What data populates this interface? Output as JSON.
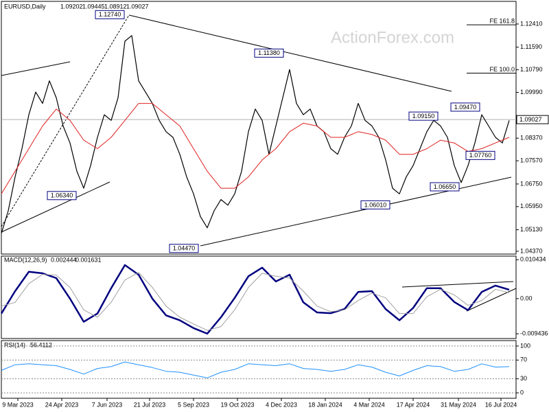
{
  "chart_data": [
    {
      "type": "line",
      "title": "EURUSD,Daily",
      "ohlc": [
        1.09202,
        1.09445,
        1.08912,
        1.09027
      ],
      "watermark": "ActionForex.com",
      "xlim": [
        0,
        375
      ],
      "ylim": [
        1.0427,
        1.1321
      ],
      "xticks": [
        {
          "value": 12,
          "label": "9 Mar 2023"
        },
        {
          "value": 44,
          "label": "24 Apr 2023"
        },
        {
          "value": 77,
          "label": "7 Jun 2023"
        },
        {
          "value": 108,
          "label": "21 Jul 2023"
        },
        {
          "value": 140,
          "label": "5 Sep 2023"
        },
        {
          "value": 172,
          "label": "19 Oct 2023"
        },
        {
          "value": 204,
          "label": "4 Dec 2023"
        },
        {
          "value": 236,
          "label": "18 Jan 2024"
        },
        {
          "value": 268,
          "label": "4 Mar 2024"
        },
        {
          "value": 300,
          "label": "17 Apr 2024"
        },
        {
          "value": 333,
          "label": "31 May 2024"
        },
        {
          "value": 364,
          "label": "16 Jul 2024"
        }
      ],
      "yticks": [
        {
          "value": 1.1241,
          "label": "1.12410"
        },
        {
          "value": 1.1159,
          "label": "1.11590"
        },
        {
          "value": 1.1079,
          "label": "1.10790"
        },
        {
          "value": 1.0999,
          "label": "1.09990"
        },
        {
          "value": 1.0837,
          "label": "1.08370"
        },
        {
          "value": 1.0757,
          "label": "1.07570"
        },
        {
          "value": 1.0675,
          "label": "1.06750"
        },
        {
          "value": 1.0595,
          "label": "1.05950"
        },
        {
          "value": 1.0513,
          "label": "1.05130"
        },
        {
          "value": 1.0437,
          "label": "1.04370"
        }
      ],
      "grid": false,
      "last": {
        "value": 1.09027,
        "label": "1.09027"
      },
      "series": [
        {
          "color": "#000000",
          "width": 1.2,
          "x": [
            0,
            5,
            10,
            15,
            20,
            25,
            30,
            35,
            40,
            45,
            50,
            55,
            60,
            65,
            70,
            75,
            80,
            85,
            90,
            95,
            100,
            105,
            110,
            115,
            120,
            125,
            130,
            135,
            140,
            145,
            150,
            155,
            160,
            165,
            170,
            175,
            180,
            185,
            190,
            195,
            200,
            205,
            210,
            215,
            220,
            225,
            230,
            235,
            240,
            245,
            250,
            255,
            260,
            265,
            270,
            275,
            280,
            285,
            290,
            295,
            300,
            305,
            310,
            315,
            320,
            325,
            330,
            335,
            340,
            345,
            350,
            355,
            360,
            365,
            370
          ],
          "values": [
            1.05,
            1.058,
            1.07,
            1.08,
            1.092,
            1.1,
            1.096,
            1.104,
            1.098,
            1.088,
            1.082,
            1.072,
            1.066,
            1.074,
            1.084,
            1.092,
            1.09,
            1.098,
            1.118,
            1.12,
            1.104,
            1.1,
            1.096,
            1.09,
            1.086,
            1.084,
            1.078,
            1.07,
            1.064,
            1.056,
            1.052,
            1.058,
            1.062,
            1.06,
            1.064,
            1.072,
            1.086,
            1.094,
            1.09,
            1.078,
            1.088,
            1.098,
            1.108,
            1.096,
            1.092,
            1.094,
            1.088,
            1.086,
            1.08,
            1.078,
            1.084,
            1.088,
            1.096,
            1.09,
            1.088,
            1.084,
            1.076,
            1.066,
            1.064,
            1.07,
            1.074,
            1.08,
            1.086,
            1.09,
            1.088,
            1.084,
            1.074,
            1.068,
            1.074,
            1.082,
            1.092,
            1.088,
            1.084,
            1.082,
            1.09
          ]
        },
        {
          "color": "#e02020",
          "width": 1,
          "x": [
            0,
            10,
            20,
            30,
            40,
            50,
            60,
            70,
            80,
            90,
            100,
            110,
            120,
            130,
            140,
            150,
            160,
            170,
            180,
            190,
            200,
            210,
            220,
            230,
            240,
            250,
            260,
            270,
            280,
            290,
            300,
            310,
            320,
            330,
            340,
            350,
            360,
            370
          ],
          "values": [
            1.064,
            1.072,
            1.08,
            1.088,
            1.094,
            1.09,
            1.083,
            1.08,
            1.084,
            1.09,
            1.096,
            1.096,
            1.092,
            1.088,
            1.08,
            1.072,
            1.066,
            1.066,
            1.07,
            1.076,
            1.08,
            1.086,
            1.089,
            1.088,
            1.084,
            1.084,
            1.086,
            1.085,
            1.083,
            1.078,
            1.078,
            1.08,
            1.083,
            1.082,
            1.079,
            1.08,
            1.082,
            1.084
          ]
        }
      ],
      "annotations": [
        {
          "x": 79,
          "y": 1.1274,
          "label": "1.12740"
        },
        {
          "x": 195,
          "y": 1.1138,
          "label": "1.11380"
        },
        {
          "x": 307.5,
          "y": 1.0915,
          "label": "1.09150"
        },
        {
          "x": 338,
          "y": 1.0947,
          "label": "1.09470"
        },
        {
          "x": 349,
          "y": 1.0776,
          "label": "1.07760"
        },
        {
          "x": 323,
          "y": 1.0665,
          "label": "1.06650"
        },
        {
          "x": 272.5,
          "y": 1.0601,
          "label": "1.06010"
        },
        {
          "x": 133,
          "y": 1.0447,
          "label": "1.04470"
        },
        {
          "x": 44,
          "y": 1.0634,
          "label": "1.06340"
        }
      ],
      "levels": [
        {
          "label": "FE 161.8",
          "value": 1.1238
        },
        {
          "label": "FE 100.0",
          "value": 1.1067
        }
      ]
    },
    {
      "type": "line",
      "title": "MACD(12,26,9)",
      "readings": [
        0.002444,
        0.001631
      ],
      "xlim": [
        0,
        375
      ],
      "ylim": [
        -0.0107,
        0.0114
      ],
      "yticks": [
        0.010434,
        {
          "value": 0,
          "label": "0.00"
        },
        -0.009436
      ],
      "grid": false,
      "series": [
        {
          "color": "#00007f",
          "width": 2.5,
          "x": [
            0,
            10,
            20,
            30,
            40,
            50,
            60,
            70,
            80,
            90,
            100,
            110,
            120,
            130,
            140,
            150,
            160,
            170,
            180,
            190,
            200,
            210,
            220,
            230,
            240,
            250,
            260,
            270,
            280,
            290,
            300,
            310,
            320,
            330,
            340,
            350,
            360,
            370
          ],
          "values": [
            -0.004,
            0.002,
            0.0072,
            0.0068,
            0.0055,
            0.0,
            -0.0062,
            -0.004,
            0.0028,
            0.009,
            0.0064,
            0.0,
            -0.0045,
            -0.0058,
            -0.0079,
            -0.0094,
            -0.005,
            0.0002,
            0.006,
            0.0083,
            0.0046,
            0.0064,
            -0.001,
            -0.0037,
            -0.0039,
            -0.0028,
            0.0018,
            0.002,
            -0.0028,
            -0.0058,
            -0.0025,
            0.0028,
            0.0028,
            -0.0009,
            -0.0031,
            0.0018,
            0.0035,
            0.0024
          ]
        },
        {
          "color": "#a0a0a0",
          "width": 1,
          "x": [
            0,
            10,
            20,
            30,
            40,
            50,
            60,
            70,
            80,
            90,
            100,
            110,
            120,
            130,
            140,
            150,
            160,
            170,
            180,
            190,
            200,
            210,
            220,
            230,
            240,
            250,
            260,
            270,
            280,
            290,
            300,
            310,
            320,
            330,
            340,
            350,
            360,
            370
          ],
          "values": [
            -0.002,
            -0.001,
            0.004,
            0.0065,
            0.0063,
            0.003,
            -0.003,
            -0.005,
            -0.001,
            0.005,
            0.007,
            0.003,
            -0.002,
            -0.005,
            -0.0068,
            -0.0085,
            -0.0075,
            -0.003,
            0.003,
            0.0068,
            0.006,
            0.0055,
            0.002,
            -0.002,
            -0.0035,
            -0.003,
            -0.0005,
            0.0015,
            0.0002,
            -0.004,
            -0.004,
            0.0005,
            0.0025,
            0.001,
            -0.0018,
            -0.0005,
            0.0025,
            0.0016
          ]
        }
      ]
    },
    {
      "type": "line",
      "title": "RSI(14)",
      "readings": [
        56.4112
      ],
      "xlim": [
        0,
        375
      ],
      "ylim": [
        -11.6,
        111.6
      ],
      "yticks": [
        100,
        70,
        30,
        0
      ],
      "grid": true,
      "series": [
        {
          "color": "#1e90ff",
          "width": 1,
          "x": [
            0,
            10,
            20,
            30,
            40,
            50,
            60,
            70,
            80,
            90,
            100,
            110,
            120,
            130,
            140,
            150,
            160,
            170,
            180,
            190,
            200,
            210,
            220,
            230,
            240,
            250,
            260,
            270,
            280,
            290,
            300,
            310,
            320,
            330,
            340,
            350,
            360,
            370
          ],
          "values": [
            48,
            60,
            62,
            60,
            58,
            50,
            40,
            52,
            56,
            66,
            60,
            54,
            46,
            44,
            38,
            32,
            44,
            50,
            62,
            60,
            58,
            62,
            52,
            50,
            46,
            50,
            60,
            55,
            44,
            36,
            48,
            58,
            56,
            46,
            50,
            62,
            55,
            56
          ]
        }
      ]
    }
  ]
}
